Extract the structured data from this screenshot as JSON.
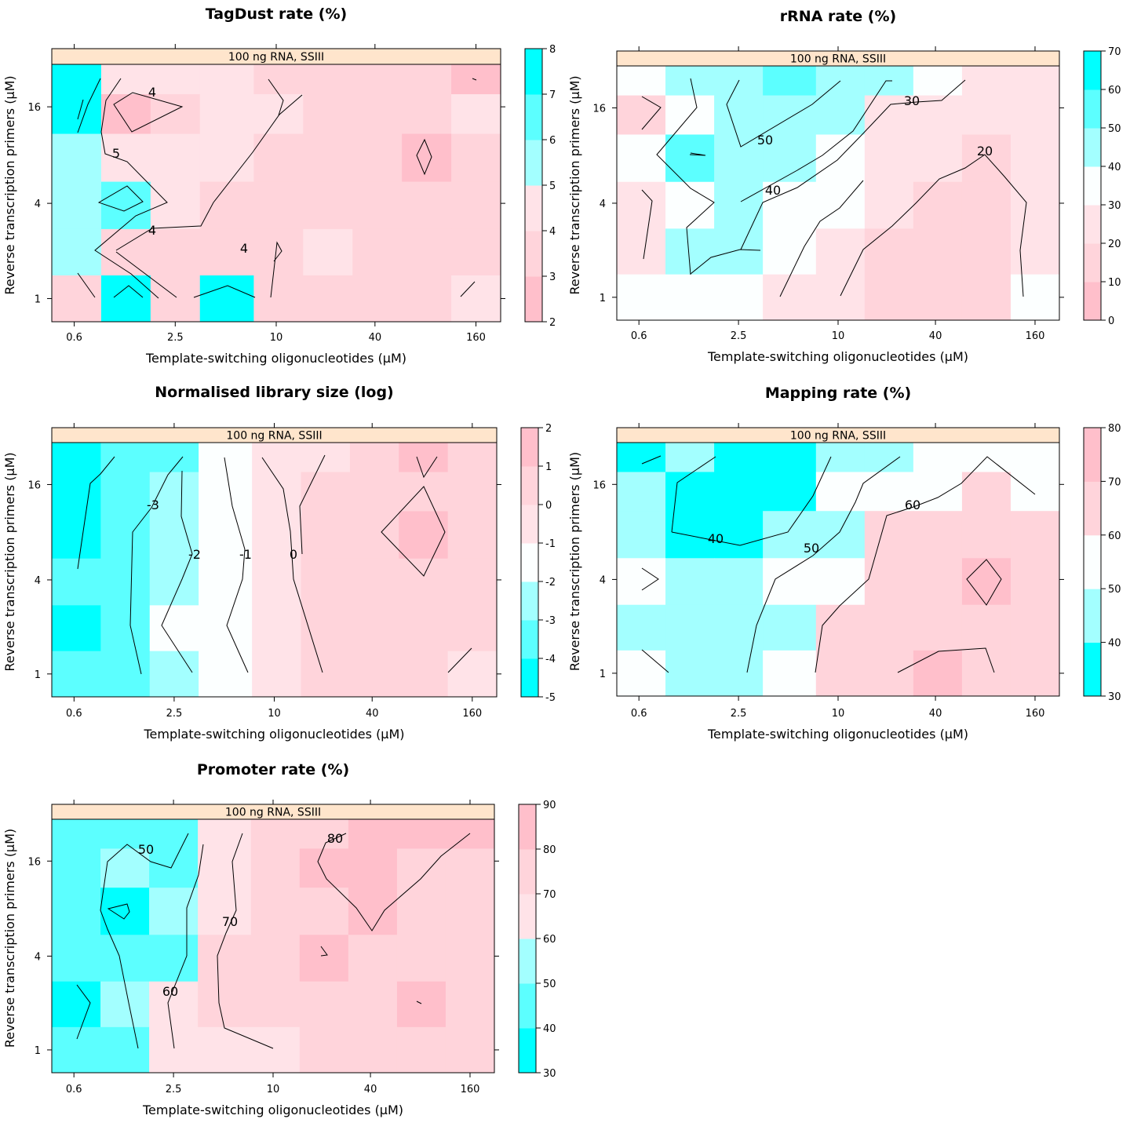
{
  "chart_data": [
    {
      "type": "heatmap",
      "title": "TagDust rate (%)",
      "strip": "100 ng RNA, SSIII",
      "xlabel": "Template-switching oligonucleotides (µM)",
      "ylabel": "Reverse transcription primers (µM)",
      "x_ticks": [
        "0.6",
        "2.5",
        "10",
        "40",
        "160"
      ],
      "y_ticks": [
        "1",
        "4",
        "16"
      ],
      "colorbar": {
        "ticks": [
          "2",
          "3",
          "4",
          "5",
          "6",
          "7",
          "8"
        ],
        "breaks": [
          2,
          3,
          4,
          5,
          6,
          7,
          8
        ]
      },
      "contour_labels": [
        "4",
        "5",
        "4",
        "4"
      ],
      "grid": [
        [
          7.5,
          4.5,
          4.5,
          4.5,
          3.5,
          3.5,
          3.5,
          3.5,
          2.5
        ],
        [
          7.5,
          2.5,
          3.5,
          4.5,
          4.5,
          3.5,
          3.5,
          3.5,
          4.5
        ],
        [
          5.5,
          4.5,
          4.5,
          4.5,
          3.5,
          3.5,
          3.5,
          2.5,
          3.5
        ],
        [
          5.5,
          6.5,
          4.5,
          3.5,
          3.5,
          3.5,
          3.5,
          3.5,
          3.5
        ],
        [
          5.5,
          3.5,
          3.5,
          3.5,
          3.5,
          4.5,
          3.5,
          3.5,
          3.5
        ],
        [
          3.5,
          7.5,
          3.5,
          7.5,
          3.5,
          3.5,
          3.5,
          3.5,
          4.5
        ]
      ]
    },
    {
      "type": "heatmap",
      "title": "rRNA rate (%)",
      "strip": "100 ng RNA, SSIII",
      "xlabel": "Template-switching oligonucleotides (µM)",
      "ylabel": "Reverse transcription primers (µM)",
      "x_ticks": [
        "0.6",
        "2.5",
        "10",
        "40",
        "160"
      ],
      "y_ticks": [
        "1",
        "4",
        "16"
      ],
      "colorbar": {
        "ticks": [
          "0",
          "10",
          "20",
          "30",
          "40",
          "50",
          "60",
          "70"
        ],
        "breaks": [
          0,
          10,
          20,
          30,
          40,
          50,
          60,
          70
        ]
      },
      "contour_labels": [
        "30",
        "50",
        "20",
        "40"
      ],
      "grid": [
        [
          35,
          45,
          45,
          55,
          45,
          45,
          35,
          25,
          25
        ],
        [
          15,
          35,
          45,
          45,
          45,
          25,
          25,
          25,
          25
        ],
        [
          35,
          55,
          45,
          45,
          35,
          25,
          25,
          15,
          25
        ],
        [
          25,
          35,
          45,
          35,
          35,
          25,
          15,
          15,
          25
        ],
        [
          25,
          45,
          45,
          35,
          25,
          15,
          15,
          15,
          25
        ],
        [
          35,
          35,
          35,
          25,
          25,
          15,
          15,
          15,
          35
        ]
      ]
    },
    {
      "type": "heatmap",
      "title": "Normalised library size (log)",
      "strip": "100 ng RNA, SSIII",
      "xlabel": "Template-switching oligonucleotides (µM)",
      "ylabel": "Reverse transcription primers (µM)",
      "x_ticks": [
        "0.6",
        "2.5",
        "10",
        "40",
        "160"
      ],
      "y_ticks": [
        "1",
        "4",
        "16"
      ],
      "colorbar": {
        "ticks": [
          "-5",
          "-4",
          "-3",
          "-2",
          "-1",
          "0",
          "1",
          "2"
        ],
        "breaks": [
          -5,
          -4,
          -3,
          -2,
          -1,
          0,
          1,
          2
        ]
      },
      "contour_labels": [
        "-3",
        "-2",
        "-1",
        "0"
      ],
      "grid": [
        [
          -4.5,
          -3.5,
          -3.5,
          -1.5,
          -0.5,
          -0.5,
          0.5,
          1.5,
          0.5
        ],
        [
          -4.5,
          -3.5,
          -2.5,
          -1.5,
          -0.5,
          0.5,
          0.5,
          0.5,
          0.5
        ],
        [
          -4.5,
          -3.5,
          -2.5,
          -1.5,
          -0.5,
          0.5,
          0.5,
          1.5,
          0.5
        ],
        [
          -3.5,
          -3.5,
          -2.5,
          -1.5,
          -0.5,
          0.5,
          0.5,
          0.5,
          0.5
        ],
        [
          -4.5,
          -3.5,
          -1.5,
          -1.5,
          -0.5,
          0.5,
          0.5,
          0.5,
          0.5
        ],
        [
          -3.5,
          -3.5,
          -2.5,
          -1.5,
          -0.5,
          0.5,
          0.5,
          0.5,
          -0.5
        ]
      ]
    },
    {
      "type": "heatmap",
      "title": "Mapping rate (%)",
      "strip": "100 ng RNA, SSIII",
      "xlabel": "Template-switching oligonucleotides (µM)",
      "ylabel": "Reverse transcription primers (µM)",
      "x_ticks": [
        "0.6",
        "2.5",
        "10",
        "40",
        "160"
      ],
      "y_ticks": [
        "1",
        "4",
        "16"
      ],
      "colorbar": {
        "ticks": [
          "30",
          "40",
          "50",
          "60",
          "70",
          "80"
        ],
        "breaks": [
          30,
          40,
          50,
          60,
          70,
          80
        ]
      },
      "contour_labels": [
        "60",
        "40",
        "50"
      ],
      "grid": [
        [
          35,
          45,
          35,
          35,
          45,
          45,
          55,
          55,
          55
        ],
        [
          45,
          35,
          35,
          35,
          55,
          55,
          55,
          65,
          55
        ],
        [
          45,
          35,
          35,
          45,
          45,
          65,
          65,
          65,
          65
        ],
        [
          55,
          45,
          45,
          55,
          55,
          65,
          65,
          75,
          65
        ],
        [
          45,
          45,
          45,
          45,
          65,
          65,
          65,
          65,
          65
        ],
        [
          55,
          45,
          45,
          55,
          65,
          65,
          75,
          65,
          65
        ]
      ]
    },
    {
      "type": "heatmap",
      "title": "Promoter rate (%)",
      "strip": "100 ng RNA, SSIII",
      "xlabel": "Template-switching oligonucleotides (µM)",
      "ylabel": "Reverse transcription primers (µM)",
      "x_ticks": [
        "0.6",
        "2.5",
        "10",
        "40",
        "160"
      ],
      "y_ticks": [
        "1",
        "4",
        "16"
      ],
      "colorbar": {
        "ticks": [
          "30",
          "40",
          "50",
          "60",
          "70",
          "80",
          "90"
        ],
        "breaks": [
          30,
          40,
          50,
          60,
          70,
          80,
          90
        ]
      },
      "contour_labels": [
        "50",
        "80",
        "70",
        "60"
      ],
      "grid": [
        [
          45,
          45,
          45,
          65,
          75,
          75,
          85,
          85,
          85
        ],
        [
          45,
          55,
          45,
          65,
          75,
          85,
          85,
          75,
          75
        ],
        [
          45,
          35,
          55,
          65,
          75,
          75,
          85,
          75,
          75
        ],
        [
          45,
          45,
          45,
          75,
          75,
          85,
          75,
          75,
          75
        ],
        [
          35,
          55,
          65,
          75,
          75,
          75,
          75,
          85,
          75
        ],
        [
          45,
          45,
          65,
          65,
          65,
          75,
          75,
          75,
          75
        ]
      ]
    }
  ],
  "palette": {
    "low_high_order": [
      "#00FFFF",
      "#5CFFFF",
      "#A3FFFF",
      "#FCFFFF",
      "#FFE3E8",
      "#FFD4DB",
      "#FFBFCB"
    ],
    "strip_fill": "#FFE5CC",
    "contour_color": "#000000"
  }
}
